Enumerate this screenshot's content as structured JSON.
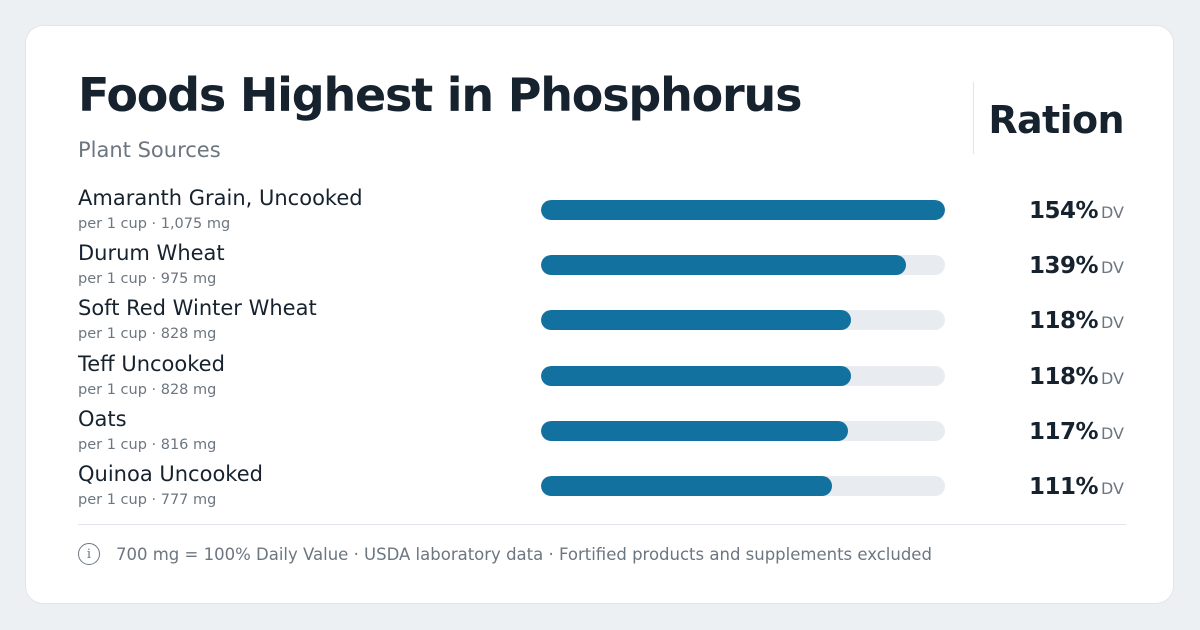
{
  "header": {
    "title": "Foods Highest in Phosphorus",
    "subtitle": "Plant Sources",
    "brand": "Ration"
  },
  "footer": {
    "icon": "info-icon",
    "note": "700 mg = 100% Daily Value · USDA laboratory data · Fortified products and supplements excluded"
  },
  "colors": {
    "bar": "#12719e",
    "track": "#e8ecf0",
    "text": "#16222e",
    "muted": "#6c7680"
  },
  "chart_data": {
    "type": "bar",
    "orientation": "horizontal",
    "title": "Foods Highest in Phosphorus",
    "subtitle": "Plant Sources",
    "xlim": [
      0,
      154
    ],
    "unit": "DV",
    "categories": [
      "Amaranth Grain, Uncooked",
      "Durum Wheat",
      "Soft Red Winter Wheat",
      "Teff Uncooked",
      "Oats",
      "Quinoa Uncooked"
    ],
    "values": [
      154,
      139,
      118,
      118,
      117,
      111
    ],
    "rows": [
      {
        "name": "Amaranth Grain, Uncooked",
        "detail": "per 1 cup · 1,075 mg",
        "value": 154,
        "value_label": "154%",
        "unit": "DV"
      },
      {
        "name": "Durum Wheat",
        "detail": "per 1 cup · 975 mg",
        "value": 139,
        "value_label": "139%",
        "unit": "DV"
      },
      {
        "name": "Soft Red Winter Wheat",
        "detail": "per 1 cup · 828 mg",
        "value": 118,
        "value_label": "118%",
        "unit": "DV"
      },
      {
        "name": "Teff Uncooked",
        "detail": "per 1 cup · 828 mg",
        "value": 118,
        "value_label": "118%",
        "unit": "DV"
      },
      {
        "name": "Oats",
        "detail": "per 1 cup · 816 mg",
        "value": 117,
        "value_label": "117%",
        "unit": "DV"
      },
      {
        "name": "Quinoa Uncooked",
        "detail": "per 1 cup · 777 mg",
        "value": 111,
        "value_label": "111%",
        "unit": "DV"
      }
    ]
  }
}
